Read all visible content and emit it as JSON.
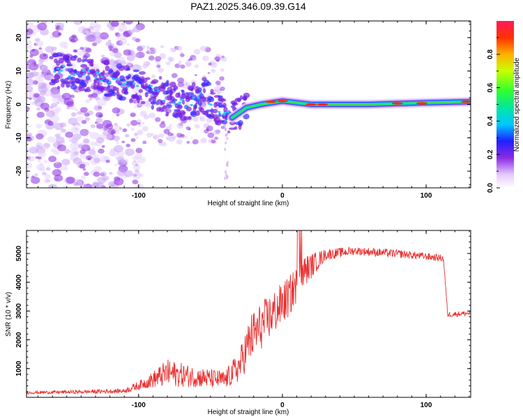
{
  "title": "PAZ1.2025.346.09.39.G14",
  "chart_data": [
    {
      "type": "heatmap",
      "name": "spectrogram",
      "xlabel": "Height of straight line (km)",
      "ylabel": "Frequency (Hz)",
      "xlim": [
        -178,
        131
      ],
      "ylim": [
        -25,
        25
      ],
      "xticks": [
        -100,
        0,
        100
      ],
      "yticks": [
        -20,
        -10,
        0,
        10,
        20
      ],
      "colorbar": {
        "label": "Normalized spectral amplitude",
        "range": [
          0,
          1
        ],
        "ticks": [
          "0.0",
          "0.2",
          "0.4",
          "0.6",
          "0.8"
        ],
        "tick_values": [
          0.0,
          0.2,
          0.4,
          0.6,
          0.8
        ]
      },
      "ridge": [
        {
          "x": -150,
          "freq": 10
        },
        {
          "x": -115,
          "freq": 7
        },
        {
          "x": -95,
          "freq": 5
        },
        {
          "x": -80,
          "freq": 2
        },
        {
          "x": -65,
          "freq": 0
        },
        {
          "x": -55,
          "freq": 3
        },
        {
          "x": -45,
          "freq": -2
        },
        {
          "x": -35,
          "freq": -4
        },
        {
          "x": -25,
          "freq": -1
        },
        {
          "x": -15,
          "freq": 0
        },
        {
          "x": 0,
          "freq": 1
        },
        {
          "x": 20,
          "freq": 0
        },
        {
          "x": 60,
          "freq": 0
        },
        {
          "x": 100,
          "freq": 0.5
        },
        {
          "x": 131,
          "freq": 0.8
        }
      ]
    },
    {
      "type": "line",
      "name": "snr",
      "xlabel": "Height of straight line (km)",
      "ylabel": "SNR (10 * v/v)",
      "xlim": [
        -178,
        131
      ],
      "ylim": [
        0,
        5800
      ],
      "xticks": [
        -100,
        0,
        100
      ],
      "yticks": [
        1000,
        2000,
        3000,
        4000,
        5000
      ],
      "color": "#e83030",
      "envelope": [
        {
          "x": -178,
          "base": 150,
          "amp": 60
        },
        {
          "x": -140,
          "base": 170,
          "amp": 80
        },
        {
          "x": -110,
          "base": 200,
          "amp": 100
        },
        {
          "x": -95,
          "base": 450,
          "amp": 250
        },
        {
          "x": -80,
          "base": 700,
          "amp": 600
        },
        {
          "x": -60,
          "base": 600,
          "amp": 450
        },
        {
          "x": -40,
          "base": 500,
          "amp": 400
        },
        {
          "x": -30,
          "base": 900,
          "amp": 700
        },
        {
          "x": -22,
          "base": 1800,
          "amp": 1100
        },
        {
          "x": -10,
          "base": 2500,
          "amp": 1000
        },
        {
          "x": 5,
          "base": 3300,
          "amp": 900
        },
        {
          "x": 15,
          "base": 4200,
          "amp": 700
        },
        {
          "x": 30,
          "base": 4900,
          "amp": 250
        },
        {
          "x": 50,
          "base": 5050,
          "amp": 180
        },
        {
          "x": 80,
          "base": 4950,
          "amp": 180
        },
        {
          "x": 112,
          "base": 4800,
          "amp": 150
        },
        {
          "x": 115,
          "base": 2850,
          "amp": 120
        },
        {
          "x": 131,
          "base": 2900,
          "amp": 110
        }
      ]
    }
  ]
}
